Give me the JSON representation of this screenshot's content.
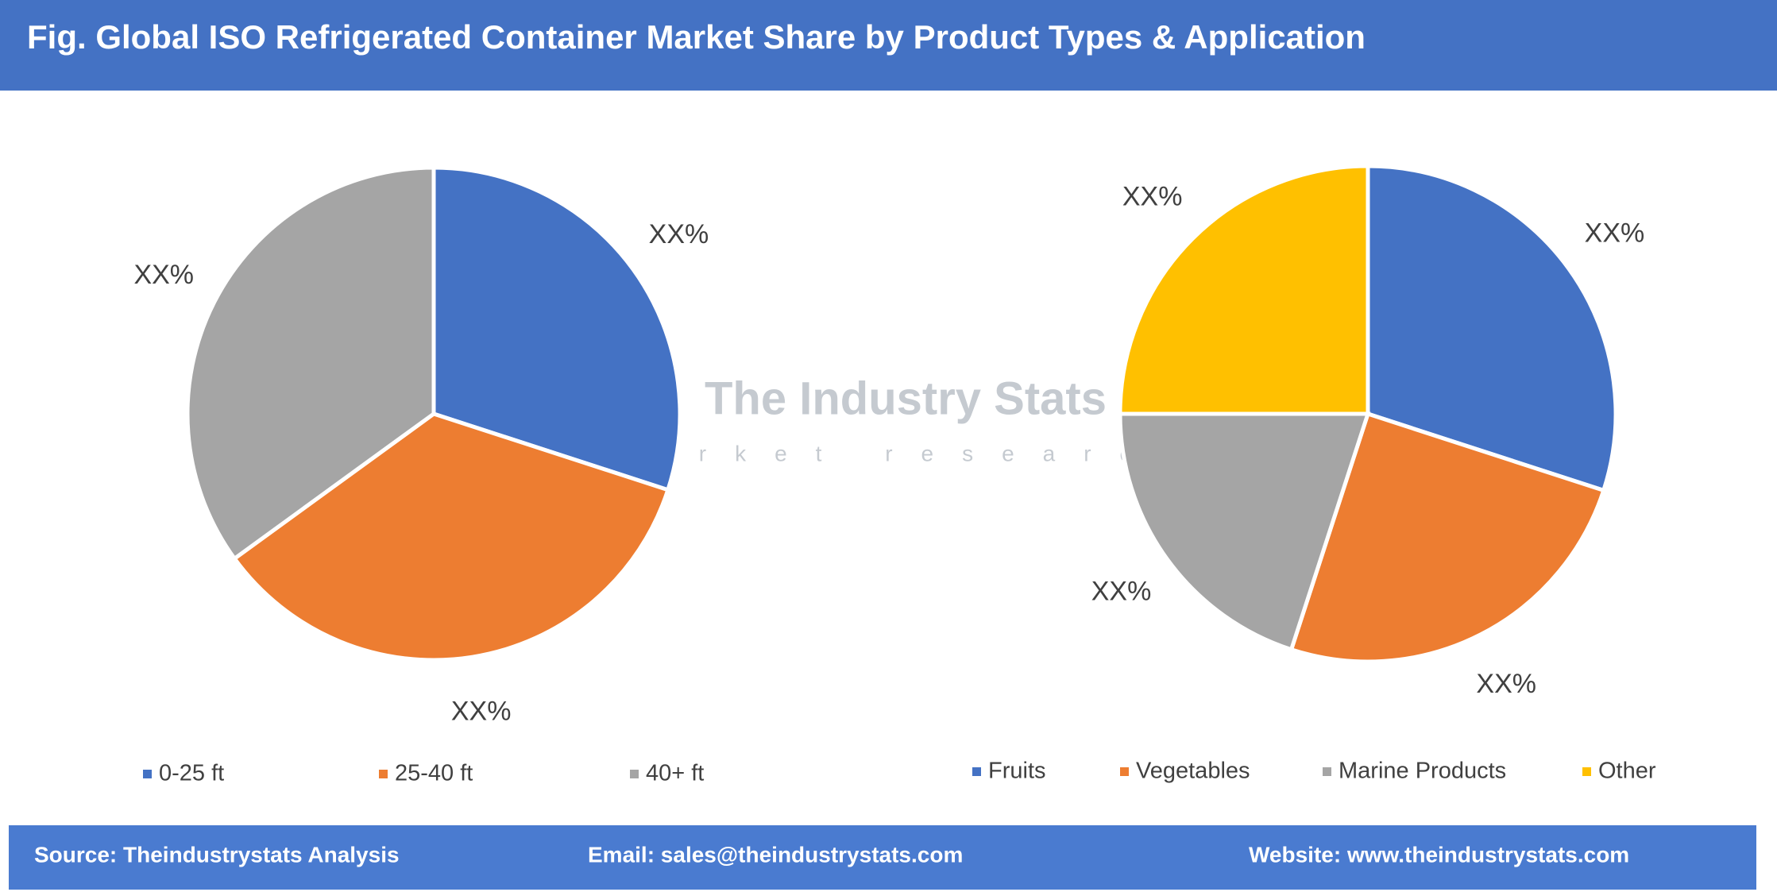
{
  "header": {
    "title": "Fig. Global ISO Refrigerated Container Market Share by Product Types & Application"
  },
  "watermark": {
    "title": "The Industry Stats",
    "subtitle": "market research"
  },
  "chart_data": [
    {
      "type": "pie",
      "categories": [
        "0-25 ft",
        "25-40 ft",
        "40+ ft"
      ],
      "values": [
        30,
        35,
        35
      ],
      "value_labels": [
        "XX%",
        "XX%",
        "XX%"
      ],
      "colors": [
        "#4472c4",
        "#ed7d31",
        "#a5a5a5"
      ]
    },
    {
      "type": "pie",
      "categories": [
        "Fruits",
        "Vegetables",
        "Marine Products",
        "Other"
      ],
      "values": [
        30,
        25,
        20,
        25
      ],
      "value_labels": [
        "XX%",
        "XX%",
        "XX%",
        "XX%"
      ],
      "colors": [
        "#4472c4",
        "#ed7d31",
        "#a5a5a5",
        "#ffc000"
      ]
    }
  ],
  "footer": {
    "source": "Source: Theindustrystats Analysis",
    "email": "Email: sales@theindustrystats.com",
    "website": "Website: www.theindustrystats.com"
  }
}
